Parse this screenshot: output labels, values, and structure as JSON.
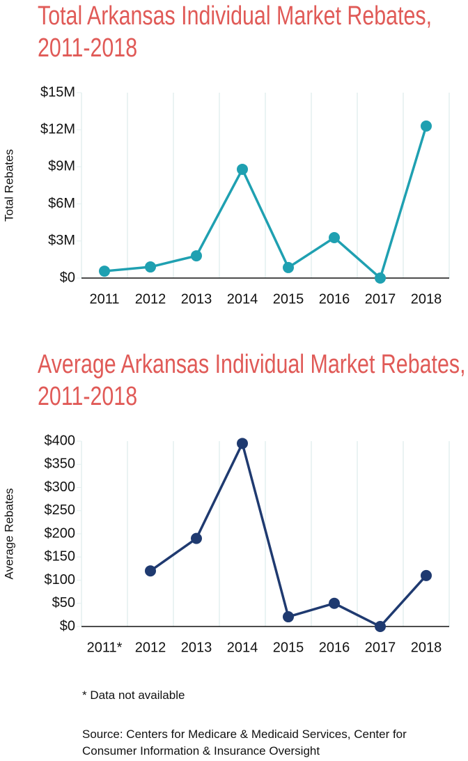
{
  "chart_data": [
    {
      "type": "line",
      "title": "Total Arkansas Individual Market Rebates, 2011-2018",
      "y_label": "Total Rebates",
      "categories": [
        "2011",
        "2012",
        "2013",
        "2014",
        "2015",
        "2016",
        "2017",
        "2018"
      ],
      "series": [
        {
          "name": "Total Rebates",
          "color": "#1fa0b1",
          "values": [
            560000,
            900000,
            1800000,
            8800000,
            850000,
            3270000,
            0,
            12300000
          ]
        }
      ],
      "ylim": [
        0,
        15000000
      ],
      "yticks": [
        {
          "value": 0,
          "label": "$0"
        },
        {
          "value": 3000000,
          "label": "$3M"
        },
        {
          "value": 6000000,
          "label": "$6M"
        },
        {
          "value": 9000000,
          "label": "$9M"
        },
        {
          "value": 12000000,
          "label": "$12M"
        },
        {
          "value": 15000000,
          "label": "$15M"
        }
      ]
    },
    {
      "type": "line",
      "title": "Average Arkansas Individual Market Rebates, 2011-2018",
      "y_label": "Average Rebates",
      "categories": [
        "2011*",
        "2012",
        "2013",
        "2014",
        "2015",
        "2016",
        "2017",
        "2018"
      ],
      "series": [
        {
          "name": "Average Rebates",
          "color": "#1f3a70",
          "values": [
            null,
            120,
            190,
            395,
            21,
            50,
            0,
            110
          ]
        }
      ],
      "ylim": [
        0,
        400
      ],
      "yticks": [
        {
          "value": 0,
          "label": "$0"
        },
        {
          "value": 50,
          "label": "$50"
        },
        {
          "value": 100,
          "label": "$100"
        },
        {
          "value": 150,
          "label": "$150"
        },
        {
          "value": 200,
          "label": "$200"
        },
        {
          "value": 250,
          "label": "$250"
        },
        {
          "value": 300,
          "label": "$300"
        },
        {
          "value": 350,
          "label": "$350"
        },
        {
          "value": 400,
          "label": "$400"
        }
      ]
    }
  ],
  "footnote": "* Data not available",
  "source": "Source: Centers for Medicare & Medicaid Services, Center for Consumer Information & Insurance Oversight"
}
